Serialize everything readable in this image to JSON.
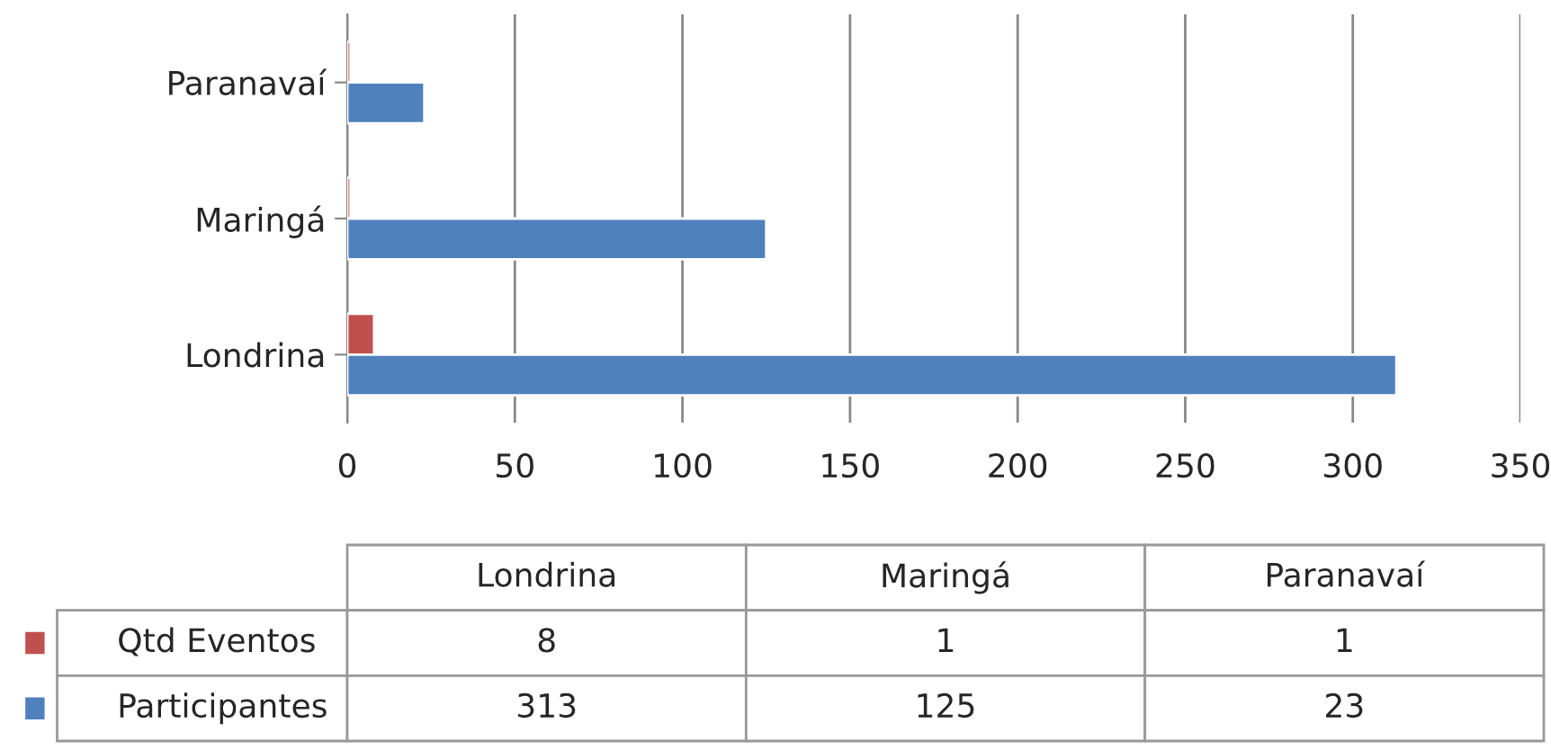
{
  "chart_data": [
    {
      "type": "bar",
      "orientation": "horizontal",
      "categories": [
        "Paranavaí",
        "Maringá",
        "Londrina"
      ],
      "series": [
        {
          "color": "#c0504d",
          "values": [
            1,
            1,
            8
          ]
        },
        {
          "color": "#4f81bd",
          "values": [
            23,
            125,
            313
          ]
        }
      ],
      "xlim": [
        0,
        350
      ],
      "xticks": [
        0,
        50,
        100,
        150,
        200,
        250,
        300,
        350
      ],
      "grid": "x"
    },
    {
      "type": "other",
      "categories": [
        "Londrina",
        "Maringá",
        "Paranavaí"
      ],
      "series": [
        {
          "name": "Qtd Eventos",
          "values": [
            8,
            1,
            1
          ]
        },
        {
          "name": "Participantes",
          "values": [
            313,
            125,
            23
          ]
        }
      ],
      "data_labels": true,
      "legend": "left"
    }
  ]
}
